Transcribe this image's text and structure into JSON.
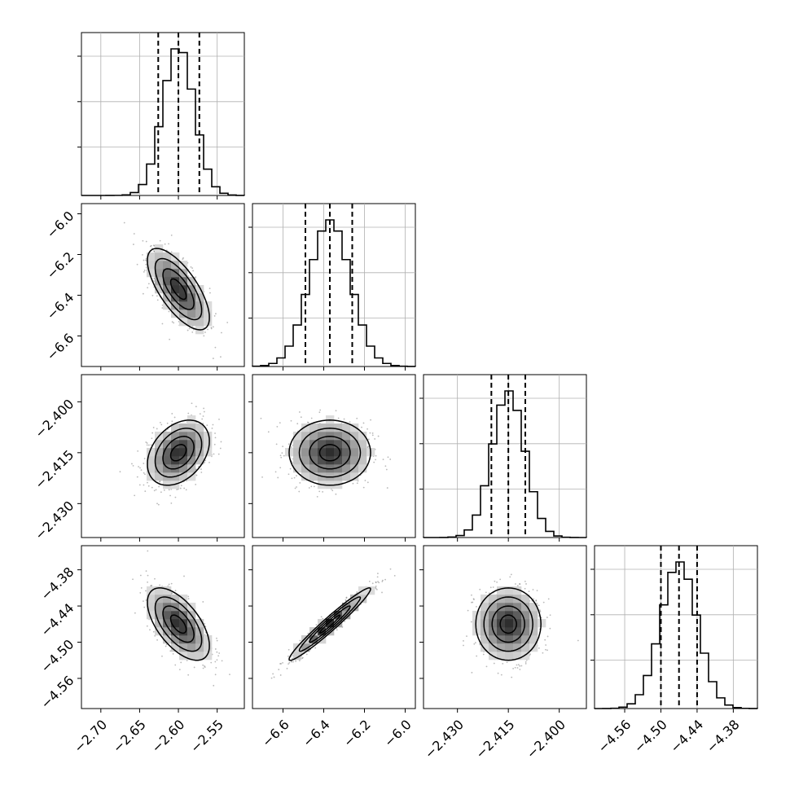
{
  "chart_data": {
    "type": "corner",
    "parameters": [
      {
        "index": 0,
        "range": [
          -2.725,
          -2.515
        ],
        "ticks": [
          -2.7,
          -2.65,
          -2.6,
          -2.55
        ],
        "tick_labels": [
          "−2.70",
          "−2.65",
          "−2.60",
          "−2.55"
        ],
        "mean": -2.6,
        "sigma": 0.02,
        "quantiles": [
          -2.626,
          -2.6,
          -2.573
        ]
      },
      {
        "index": 1,
        "range": [
          -6.75,
          -5.95
        ],
        "ticks": [
          -6.6,
          -6.4,
          -6.2,
          -6.0
        ],
        "tick_labels": [
          "−6.6",
          "−6.4",
          "−6.2",
          "−6.0"
        ],
        "mean": -6.37,
        "sigma": 0.1,
        "quantiles": [
          -6.49,
          -6.37,
          -6.26
        ]
      },
      {
        "index": 2,
        "range": [
          -2.44,
          -2.392
        ],
        "ticks": [
          -2.43,
          -2.415,
          -2.4
        ],
        "tick_labels": [
          "−2.430",
          "−2.415",
          "−2.400"
        ],
        "mean": -2.415,
        "sigma": 0.0048,
        "quantiles": [
          -2.42,
          -2.415,
          -2.41
        ]
      },
      {
        "index": 3,
        "range": [
          -4.61,
          -4.34
        ],
        "ticks": [
          -4.56,
          -4.5,
          -4.44,
          -4.38
        ],
        "tick_labels": [
          "−4.56",
          "−4.50",
          "−4.44",
          "−4.38"
        ],
        "mean": -4.47,
        "sigma": 0.03,
        "quantiles": [
          -4.5,
          -4.47,
          -4.44
        ]
      }
    ],
    "correlations": [
      {
        "pair": [
          0,
          1
        ],
        "rho": -0.7
      },
      {
        "pair": [
          0,
          2
        ],
        "rho": 0.35
      },
      {
        "pair": [
          0,
          3
        ],
        "rho": -0.6
      },
      {
        "pair": [
          1,
          2
        ],
        "rho": 0.0
      },
      {
        "pair": [
          1,
          3
        ],
        "rho": 0.97
      },
      {
        "pair": [
          2,
          3
        ],
        "rho": 0.0
      }
    ],
    "histogram_bins": 20,
    "contour_levels_sigma": [
      0.5,
      1.0,
      1.5,
      2.0
    ],
    "grid": true,
    "colors": {
      "line": "#000000",
      "points": "#808080",
      "grid": "#b0b0b0"
    }
  }
}
